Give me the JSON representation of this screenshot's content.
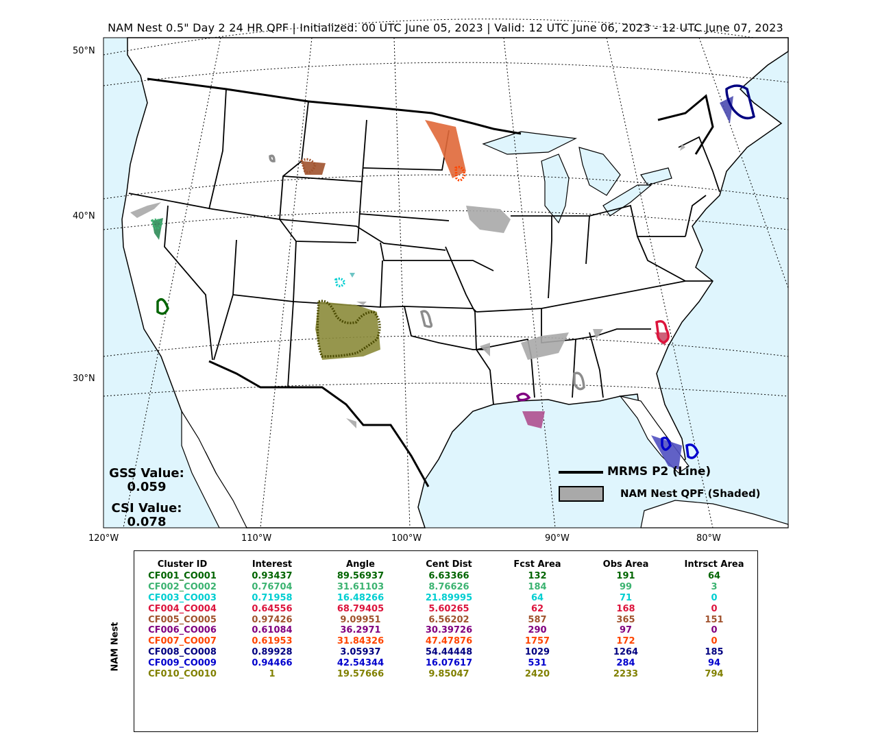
{
  "title": "NAM Nest 0.5\" Day 2 24 HR QPF | Initialized: 00 UTC June 05, 2023 | Valid: 12 UTC June 06, 2023 - 12 UTC June 07, 2023",
  "lat_labels": [
    "50°N",
    "40°N",
    "30°N"
  ],
  "lon_labels": [
    "120°W",
    "110°W",
    "100°W",
    "90°W",
    "80°W"
  ],
  "stats": {
    "gss_label": "GSS Value:",
    "gss_value": "0.059",
    "csi_label": "CSI Value:",
    "csi_value": "0.078"
  },
  "legend": {
    "line_label": "MRMS P2 (Line)",
    "shade_label": "NAM Nest QPF (Shaded)"
  },
  "table": {
    "ylabel": "NAM Nest",
    "headers": [
      "Cluster ID",
      "Interest",
      "Angle",
      "Cent Dist",
      "Fcst Area",
      "Obs Area",
      "Intrsct Area"
    ],
    "rows": [
      {
        "color": "#006400",
        "cells": [
          "CF001_CO001",
          "0.93437",
          "89.56937",
          "6.63366",
          "132",
          "191",
          "64"
        ]
      },
      {
        "color": "#3cb371",
        "cells": [
          "CF002_CO002",
          "0.76704",
          "31.61103",
          "8.76626",
          "184",
          "99",
          "3"
        ]
      },
      {
        "color": "#00ced1",
        "cells": [
          "CF003_CO003",
          "0.71958",
          "16.48266",
          "21.89995",
          "64",
          "71",
          "0"
        ]
      },
      {
        "color": "#dc143c",
        "cells": [
          "CF004_CO004",
          "0.64556",
          "68.79405",
          "5.60265",
          "62",
          "168",
          "0"
        ]
      },
      {
        "color": "#a0522d",
        "cells": [
          "CF005_CO005",
          "0.97426",
          "9.09951",
          "6.56202",
          "587",
          "365",
          "151"
        ]
      },
      {
        "color": "#800080",
        "cells": [
          "CF006_CO006",
          "0.61084",
          "36.2971",
          "30.39726",
          "290",
          "97",
          "0"
        ]
      },
      {
        "color": "#ff4500",
        "cells": [
          "CF007_CO007",
          "0.61953",
          "31.84326",
          "47.47876",
          "1757",
          "172",
          "0"
        ]
      },
      {
        "color": "#000080",
        "cells": [
          "CF008_CO008",
          "0.89928",
          "3.05937",
          "54.44448",
          "1029",
          "1264",
          "185"
        ]
      },
      {
        "color": "#0000cd",
        "cells": [
          "CF009_CO009",
          "0.94466",
          "42.54344",
          "16.07617",
          "531",
          "284",
          "94"
        ]
      },
      {
        "color": "#808000",
        "cells": [
          "CF010_CO010",
          "1",
          "19.57666",
          "9.85047",
          "2420",
          "2233",
          "794"
        ]
      }
    ]
  },
  "colors": {
    "ocean": "#dff5fd",
    "land": "#ffffff",
    "fcst_gray": "#a9a9a9"
  }
}
